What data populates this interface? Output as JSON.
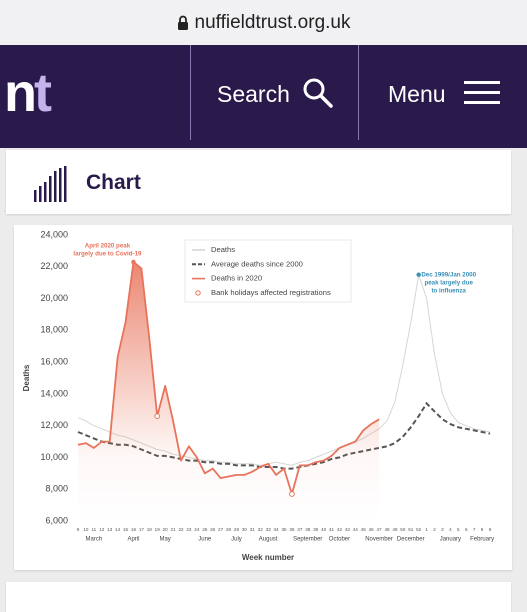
{
  "browser": {
    "url": "nuffieldtrust.org.uk"
  },
  "nav": {
    "logo_n": "n",
    "logo_t": "t",
    "search": "Search",
    "menu": "Menu"
  },
  "section": {
    "heading": "Chart"
  },
  "chart_data": {
    "type": "line",
    "y_label": "Deaths",
    "x_label": "Week number",
    "categories": [
      "9",
      "10",
      "11",
      "12",
      "13",
      "14",
      "15",
      "16",
      "17",
      "18",
      "19",
      "20",
      "21",
      "22",
      "23",
      "24",
      "25",
      "26",
      "27",
      "28",
      "29",
      "30",
      "31",
      "32",
      "33",
      "34",
      "35",
      "36",
      "37",
      "38",
      "39",
      "40",
      "41",
      "42",
      "43",
      "44",
      "45",
      "46",
      "47",
      "48",
      "49",
      "50",
      "51",
      "52",
      "1",
      "2",
      "3",
      "4",
      "5",
      "6",
      "7",
      "8",
      "9"
    ],
    "month_labels": [
      null,
      null,
      "March",
      null,
      null,
      null,
      null,
      "April",
      null,
      null,
      null,
      "May",
      null,
      null,
      null,
      null,
      "June",
      null,
      null,
      null,
      "July",
      null,
      null,
      null,
      "August",
      null,
      null,
      null,
      null,
      "September",
      null,
      null,
      null,
      "October",
      null,
      null,
      null,
      null,
      "November",
      null,
      null,
      null,
      "December",
      null,
      null,
      null,
      null,
      "January",
      null,
      null,
      null,
      "February",
      null
    ],
    "ylim": [
      6000,
      24000
    ],
    "yticks": [
      {
        "value": 6000,
        "label": "6,000"
      },
      {
        "value": 8000,
        "label": "8,000"
      },
      {
        "value": 10000,
        "label": "10,000"
      },
      {
        "value": 12000,
        "label": "12,000"
      },
      {
        "value": 14000,
        "label": "14,000"
      },
      {
        "value": 16000,
        "label": "16,000"
      },
      {
        "value": 18000,
        "label": "18,000"
      },
      {
        "value": 20000,
        "label": "20,000"
      },
      {
        "value": 22000,
        "label": "22,000"
      },
      {
        "value": 24000,
        "label": "24,000"
      }
    ],
    "grid": false,
    "series": [
      {
        "name": "Deaths",
        "color": "#d6d6d6",
        "style": "solid",
        "values": [
          12500,
          12300,
          12000,
          11800,
          11600,
          11400,
          11300,
          11100,
          10900,
          10700,
          10500,
          10400,
          10200,
          10100,
          10000,
          9900,
          9800,
          9800,
          9700,
          9700,
          9600,
          9600,
          9600,
          9500,
          9600,
          9700,
          9600,
          9500,
          9700,
          9800,
          10000,
          10200,
          10400,
          10600,
          10800,
          11000,
          11200,
          11500,
          11800,
          12300,
          13500,
          15800,
          18500,
          21500,
          20000,
          16500,
          14000,
          12800,
          12200,
          12000,
          11800,
          11700,
          11600
        ]
      },
      {
        "name": "Average deaths since 2000",
        "color": "#555555",
        "style": "dashed",
        "values": [
          11600,
          11400,
          11200,
          11000,
          10900,
          10800,
          10800,
          10700,
          10500,
          10300,
          10100,
          10100,
          10000,
          9900,
          9800,
          9800,
          9700,
          9700,
          9600,
          9600,
          9500,
          9500,
          9500,
          9400,
          9400,
          9400,
          9300,
          9300,
          9400,
          9500,
          9600,
          9700,
          9900,
          10000,
          10200,
          10300,
          10400,
          10500,
          10600,
          10700,
          10900,
          11300,
          11900,
          12600,
          13400,
          12900,
          12400,
          12100,
          11900,
          11800,
          11700,
          11600,
          11500
        ]
      },
      {
        "name": "Deaths in 2020",
        "color": "#e8735a",
        "style": "solid",
        "values": [
          10800,
          10900,
          10600,
          11000,
          11000,
          16300,
          18500,
          22300,
          21900,
          17500,
          12600,
          14500,
          12300,
          9800,
          10700,
          10000,
          9000,
          9300,
          8700,
          8800,
          8900,
          8900,
          9100,
          9400,
          9600,
          8900,
          9300,
          7700,
          9500,
          9500,
          9700,
          9800,
          10100,
          10600,
          10800,
          11000,
          11700,
          12100,
          12400,
          null,
          null,
          null,
          null,
          null,
          null,
          null,
          null,
          null,
          null,
          null,
          null,
          null,
          null
        ]
      },
      {
        "name": "Bank holidays affected registrations",
        "color": "#e8735a",
        "style": "marker",
        "values": [
          null,
          null,
          null,
          null,
          null,
          null,
          null,
          null,
          null,
          null,
          12600,
          null,
          null,
          null,
          null,
          null,
          null,
          null,
          null,
          null,
          null,
          null,
          null,
          null,
          null,
          null,
          null,
          7700,
          null,
          null,
          null,
          null,
          null,
          null,
          null,
          null,
          null,
          null,
          null,
          null,
          null,
          null,
          null,
          null,
          null,
          null,
          null,
          null,
          null,
          null,
          null,
          null,
          null
        ]
      }
    ],
    "annotations": [
      {
        "series": 2,
        "color": "#e8735a",
        "lines": [
          "April 2020 peak",
          "largely due to Covid-19"
        ]
      },
      {
        "series": 0,
        "color": "#3a8fb7",
        "lines": [
          "Dec 1999/Jan 2000",
          "peak largely due",
          "to influenza"
        ]
      }
    ]
  }
}
